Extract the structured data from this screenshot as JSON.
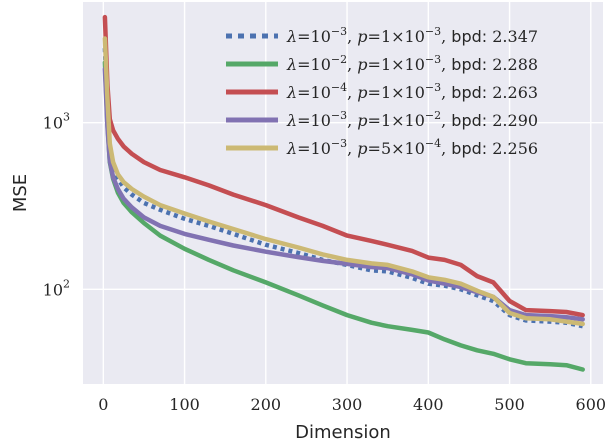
{
  "chart_data": {
    "type": "line",
    "xlabel": "Dimension",
    "ylabel": "MSE",
    "xlim": [
      -25,
      615
    ],
    "ylim": [
      27,
      5300
    ],
    "yscale": "log",
    "grid": true,
    "legend_position": "top-right",
    "x_ticks": [
      {
        "value": 0,
        "label": "0"
      },
      {
        "value": 100,
        "label": "100"
      },
      {
        "value": 200,
        "label": "200"
      },
      {
        "value": 300,
        "label": "300"
      },
      {
        "value": 400,
        "label": "400"
      },
      {
        "value": 500,
        "label": "500"
      },
      {
        "value": 600,
        "label": "600"
      }
    ],
    "y_ticks": [
      {
        "value": 100,
        "base": "10",
        "exp": "2"
      },
      {
        "value": 1000,
        "base": "10",
        "exp": "3"
      }
    ],
    "series": [
      {
        "name": "λ=10⁻³, p=1×10⁻³, bpd: 2.347",
        "legend": {
          "lambda_base": "10",
          "lambda_exp": "−3",
          "p_mant": "1",
          "p_base": "10",
          "p_exp": "−3",
          "bpd_label": "bpd: ",
          "bpd": "2.347"
        },
        "color": "#4c72b0",
        "dashed": true,
        "x": [
          2,
          5,
          8,
          12,
          18,
          25,
          35,
          50,
          70,
          100,
          130,
          160,
          200,
          240,
          270,
          300,
          330,
          350,
          380,
          400,
          420,
          440,
          460,
          480,
          500,
          520,
          550,
          570,
          590
        ],
        "y": [
          2800,
          1200,
          700,
          560,
          460,
          410,
          370,
          330,
          300,
          265,
          240,
          215,
          185,
          165,
          150,
          140,
          130,
          128,
          117,
          108,
          105,
          100,
          92,
          85,
          70,
          65,
          64,
          63,
          60
        ]
      },
      {
        "name": "λ=10⁻², p=1×10⁻³, bpd: 2.288",
        "legend": {
          "lambda_base": "10",
          "lambda_exp": "−2",
          "p_mant": "1",
          "p_base": "10",
          "p_exp": "−3",
          "bpd_label": "bpd: ",
          "bpd": "2.288"
        },
        "color": "#55a868",
        "dashed": false,
        "x": [
          2,
          5,
          8,
          12,
          18,
          25,
          35,
          50,
          70,
          100,
          130,
          160,
          200,
          240,
          270,
          300,
          330,
          350,
          380,
          400,
          420,
          440,
          460,
          480,
          500,
          520,
          550,
          570,
          590
        ],
        "y": [
          2300,
          1000,
          580,
          460,
          380,
          330,
          290,
          250,
          210,
          175,
          150,
          130,
          110,
          92,
          80,
          70,
          63,
          60,
          57,
          55,
          50,
          46,
          43,
          41,
          38,
          36,
          35.5,
          35,
          33
        ]
      },
      {
        "name": "λ=10⁻⁴, p=1×10⁻³, bpd: 2.263",
        "legend": {
          "lambda_base": "10",
          "lambda_exp": "−4",
          "p_mant": "1",
          "p_base": "10",
          "p_exp": "−3",
          "bpd_label": "bpd: ",
          "bpd": "2.263"
        },
        "color": "#c44e52",
        "dashed": false,
        "x": [
          2,
          5,
          8,
          12,
          18,
          25,
          35,
          50,
          70,
          100,
          130,
          160,
          200,
          240,
          270,
          300,
          330,
          350,
          380,
          400,
          420,
          440,
          460,
          480,
          500,
          520,
          550,
          570,
          590
        ],
        "y": [
          4300,
          1700,
          1050,
          900,
          800,
          720,
          650,
          580,
          520,
          470,
          420,
          370,
          320,
          270,
          240,
          210,
          195,
          185,
          170,
          155,
          150,
          140,
          120,
          110,
          85,
          75,
          74,
          73,
          70
        ]
      },
      {
        "name": "λ=10⁻³, p=1×10⁻², bpd: 2.290",
        "legend": {
          "lambda_base": "10",
          "lambda_exp": "−3",
          "p_mant": "1",
          "p_base": "10",
          "p_exp": "−2",
          "bpd_label": "bpd: ",
          "bpd": "2.290"
        },
        "color": "#8172b2",
        "dashed": false,
        "x": [
          2,
          5,
          8,
          12,
          18,
          25,
          35,
          50,
          70,
          100,
          130,
          160,
          200,
          240,
          270,
          300,
          330,
          350,
          380,
          400,
          420,
          440,
          460,
          480,
          500,
          520,
          550,
          570,
          590
        ],
        "y": [
          2100,
          950,
          590,
          470,
          400,
          350,
          310,
          270,
          240,
          215,
          198,
          183,
          168,
          156,
          148,
          142,
          136,
          134,
          123,
          113,
          108,
          103,
          96,
          90,
          75,
          70,
          69,
          68,
          66
        ]
      },
      {
        "name": "λ=10⁻³, p=5×10⁻⁴, bpd: 2.256",
        "legend": {
          "lambda_base": "10",
          "lambda_exp": "−3",
          "p_mant": "5",
          "p_base": "10",
          "p_exp": "−4",
          "bpd_label": "bpd: ",
          "bpd": "2.256"
        },
        "color": "#ccb974",
        "dashed": false,
        "x": [
          2,
          5,
          8,
          12,
          18,
          25,
          35,
          50,
          70,
          100,
          130,
          160,
          200,
          240,
          270,
          300,
          330,
          350,
          380,
          400,
          420,
          440,
          460,
          480,
          500,
          520,
          550,
          570,
          590
        ],
        "y": [
          3200,
          1400,
          750,
          580,
          490,
          440,
          400,
          360,
          320,
          285,
          255,
          230,
          200,
          178,
          162,
          150,
          143,
          140,
          128,
          118,
          114,
          108,
          98,
          90,
          72,
          67,
          66,
          64,
          62
        ]
      }
    ]
  }
}
